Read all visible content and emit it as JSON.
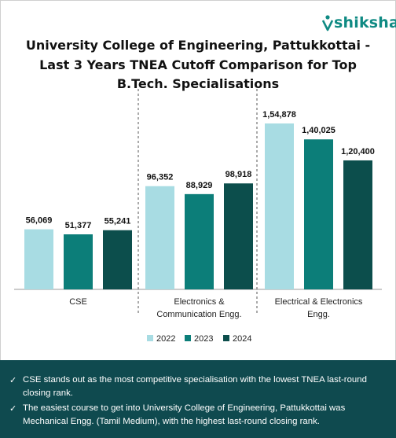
{
  "brand": {
    "name": "shiksha",
    "color": "#0f8a83"
  },
  "colors": {
    "2022": "#a8dce3",
    "2023": "#0c7e79",
    "2024": "#0c4e4c",
    "footer_bg": "#0f4a4f"
  },
  "chart_data": {
    "type": "bar",
    "title": "University College of Engineering, Pattukkottai - Last 3 Years TNEA Cutoff Comparison for Top B.Tech. Specialisations",
    "categories": [
      "CSE",
      "Electronics & Communication Engg.",
      "Electrical & Electronics Engg."
    ],
    "category_lines": [
      [
        "CSE"
      ],
      [
        "Electronics &",
        "Communication Engg."
      ],
      [
        "Electrical & Electronics",
        "Engg."
      ]
    ],
    "series": [
      {
        "name": "2022",
        "values": [
          56069,
          96352,
          154878
        ],
        "labels": [
          "56,069",
          "96,352",
          "1,54,878"
        ]
      },
      {
        "name": "2023",
        "values": [
          51377,
          88929,
          140025
        ],
        "labels": [
          "51,377",
          "88,929",
          "1,40,025"
        ]
      },
      {
        "name": "2024",
        "values": [
          55241,
          98918,
          120400
        ],
        "labels": [
          "55,241",
          "98,918",
          "1,20,400"
        ]
      }
    ],
    "ylim": [
      0,
      180000
    ],
    "grid": false,
    "legend": "bottom"
  },
  "footer": {
    "notes": [
      "CSE stands out as the most competitive specialisation with the lowest TNEA last-round closing rank.",
      "The easiest course to get into University College of Engineering, Pattukkottai was Mechanical Engg. (Tamil Medium), with the highest last-round closing rank."
    ]
  }
}
